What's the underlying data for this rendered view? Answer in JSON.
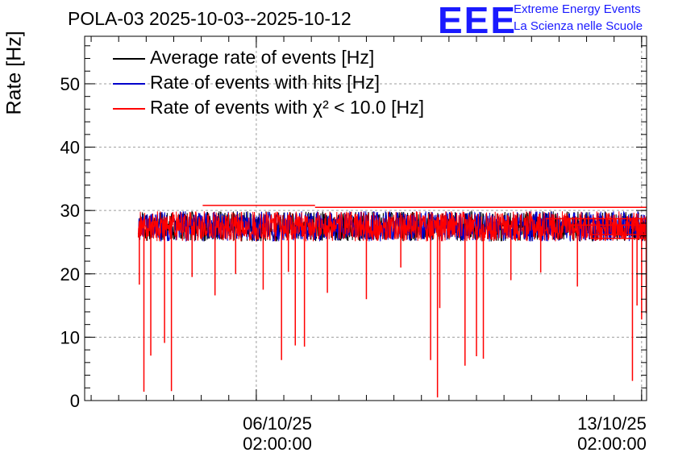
{
  "title": "POLA-03 2025-10-03--2025-10-12",
  "brand": {
    "logo": "EEE",
    "line1": "Extreme Energy Events",
    "line2": "La Scienza nelle Scuole"
  },
  "colors": {
    "avg": "#000000",
    "hits": "#0000cc",
    "chi2": "#ff0000",
    "brand": "#1a1aff",
    "grid": "#9e9e9e"
  },
  "chart_data": {
    "type": "line",
    "title": "POLA-03 2025-10-03--2025-10-12",
    "xlabel": "",
    "ylabel": "Rate [Hz]",
    "ylim": [
      0,
      57.5
    ],
    "yticks": [
      0,
      10,
      20,
      30,
      40,
      50
    ],
    "xlim": [
      "2025-10-02T23:10:00",
      "2025-10-13T04:10:00"
    ],
    "xticks": [
      {
        "at": "2025-10-06T02:00:00",
        "date": "06/10/25",
        "time": "02:00:00"
      },
      {
        "at": "2025-10-13T02:00:00",
        "date": "13/10/25",
        "time": "02:00:00"
      }
    ],
    "grid": true,
    "legend_position": "top-left",
    "series": [
      {
        "name": "Average rate of events [Hz]",
        "color": "#000000",
        "typical": 27.5,
        "range": [
          25.5,
          30.5
        ]
      },
      {
        "name": "Rate of events with hits [Hz]",
        "color": "#0000cc",
        "typical": 27.5,
        "range": [
          25.5,
          30.5
        ]
      },
      {
        "name": "Rate of events with χ² < 10.0 [Hz]",
        "color": "#ff0000",
        "typical": 27.5,
        "range": [
          25.5,
          30.5
        ]
      }
    ],
    "data_start": "2025-10-03T22:30:00",
    "data_end": "2025-10-13T04:10:00",
    "dips": [
      {
        "t": "2025-10-03T23:00:00",
        "y": 18.3
      },
      {
        "t": "2025-10-04T01:00:00",
        "y": 1.4
      },
      {
        "t": "2025-10-04T04:00:00",
        "y": 7.1
      },
      {
        "t": "2025-10-04T10:00:00",
        "y": 9.1
      },
      {
        "t": "2025-10-04T13:00:00",
        "y": 1.5
      },
      {
        "t": "2025-10-04T22:00:00",
        "y": 19.5
      },
      {
        "t": "2025-10-05T08:00:00",
        "y": 16.6
      },
      {
        "t": "2025-10-05T17:00:00",
        "y": 20.0
      },
      {
        "t": "2025-10-06T05:00:00",
        "y": 17.5
      },
      {
        "t": "2025-10-06T13:00:00",
        "y": 6.4
      },
      {
        "t": "2025-10-06T16:00:00",
        "y": 20.3
      },
      {
        "t": "2025-10-06T19:00:00",
        "y": 8.7
      },
      {
        "t": "2025-10-06T23:00:00",
        "y": 8.5
      },
      {
        "t": "2025-10-07T09:00:00",
        "y": 17.0
      },
      {
        "t": "2025-10-08T02:00:00",
        "y": 16.0
      },
      {
        "t": "2025-10-08T17:00:00",
        "y": 21.0
      },
      {
        "t": "2025-10-09T06:00:00",
        "y": 6.4
      },
      {
        "t": "2025-10-09T09:00:00",
        "y": 0.5
      },
      {
        "t": "2025-10-09T10:00:00",
        "y": 14.6
      },
      {
        "t": "2025-10-09T21:00:00",
        "y": 5.5
      },
      {
        "t": "2025-10-10T02:00:00",
        "y": 7.0
      },
      {
        "t": "2025-10-10T05:00:00",
        "y": 6.6
      },
      {
        "t": "2025-10-10T17:00:00",
        "y": 19.0
      },
      {
        "t": "2025-10-11T06:00:00",
        "y": 20.2
      },
      {
        "t": "2025-10-11T22:00:00",
        "y": 18.0
      },
      {
        "t": "2025-10-12T22:00:00",
        "y": 3.1
      },
      {
        "t": "2025-10-13T00:00:00",
        "y": 15.0
      },
      {
        "t": "2025-10-13T02:00:00",
        "y": 12.8
      },
      {
        "t": "2025-10-13T04:00:00",
        "y": 13.8
      }
    ]
  }
}
